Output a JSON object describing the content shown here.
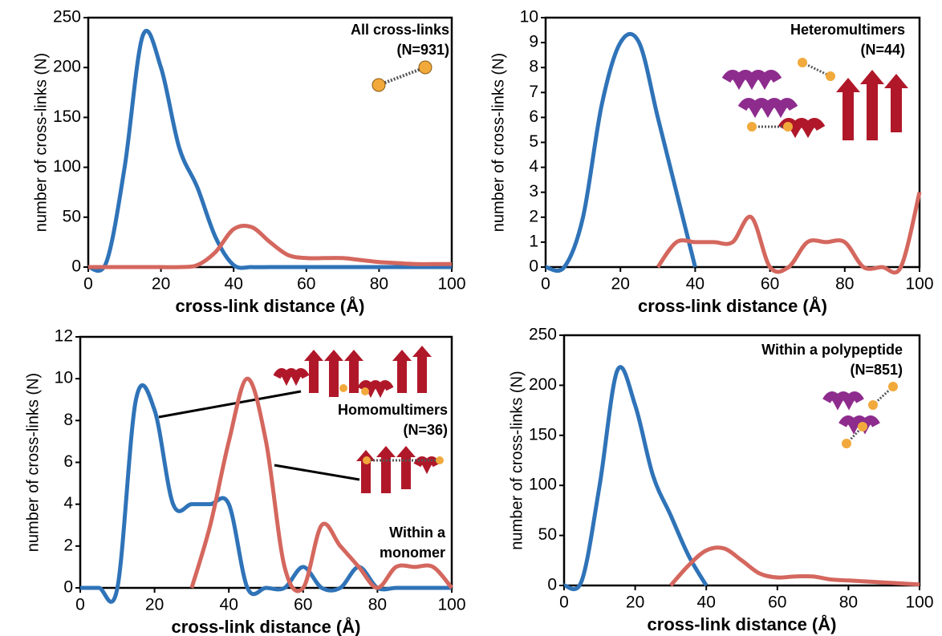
{
  "chart_data": [
    {
      "type": "line",
      "xlabel": "cross-link distance (Å)",
      "ylabel": "number of cross-links (N)",
      "annotations": [
        "All cross-links",
        "(N=931)"
      ],
      "x": [
        0,
        5,
        10,
        15,
        20,
        25,
        30,
        35,
        40,
        45,
        50,
        55,
        60,
        65,
        70,
        75,
        80,
        85,
        90,
        95,
        100
      ],
      "series": [
        {
          "color": "#2f73b8",
          "values": [
            0,
            5,
            100,
            232,
            200,
            120,
            80,
            30,
            2,
            0,
            0,
            0,
            0,
            0,
            0,
            0,
            0,
            0,
            0,
            0,
            0
          ]
        },
        {
          "color": "#d4675e",
          "values": [
            0,
            0,
            0,
            0,
            0,
            0,
            2,
            15,
            38,
            40,
            25,
            12,
            9,
            9,
            9,
            7,
            5,
            4,
            3,
            3,
            3
          ]
        }
      ],
      "xlim": [
        0,
        100
      ],
      "xticks": [
        0,
        20,
        40,
        60,
        80,
        100
      ],
      "ylim": [
        0,
        250
      ],
      "yticks": [
        0,
        50,
        100,
        150,
        200,
        250
      ]
    },
    {
      "type": "line",
      "xlabel": "cross-link distance (Å)",
      "ylabel": "number of cross-links (N)",
      "annotations": [
        "Heteromultimers",
        "(N=44)"
      ],
      "x": [
        0,
        5,
        10,
        15,
        20,
        25,
        30,
        35,
        40,
        45,
        50,
        55,
        60,
        65,
        70,
        75,
        80,
        85,
        90,
        95,
        100
      ],
      "series": [
        {
          "color": "#2f73b8",
          "values": [
            0,
            0,
            2,
            6.5,
            9,
            9,
            6,
            3,
            0,
            null,
            null,
            null,
            null,
            null,
            null,
            null,
            null,
            null,
            null,
            null,
            null
          ]
        },
        {
          "color": "#d4675e",
          "values": [
            null,
            null,
            null,
            null,
            null,
            null,
            0,
            1,
            1,
            1,
            1,
            2,
            0,
            0,
            1,
            1,
            1,
            0,
            0,
            0,
            3
          ]
        }
      ],
      "xlim": [
        0,
        100
      ],
      "xticks": [
        0,
        20,
        40,
        60,
        80,
        100
      ],
      "ylim": [
        0,
        10
      ],
      "yticks": [
        0,
        1,
        2,
        3,
        4,
        5,
        6,
        7,
        8,
        9,
        10
      ]
    },
    {
      "type": "line",
      "xlabel": "cross-link distance (Å)",
      "ylabel": "number of cross-links (N)",
      "annotations": [
        "Homomultimers",
        "(N=36)",
        "Within a",
        "monomer"
      ],
      "x": [
        0,
        5,
        10,
        15,
        20,
        25,
        30,
        35,
        40,
        45,
        50,
        55,
        60,
        65,
        70,
        75,
        80,
        85,
        90,
        95,
        100
      ],
      "series": [
        {
          "color": "#2f73b8",
          "values": [
            0,
            0,
            0,
            9,
            8.5,
            4,
            4,
            4,
            4,
            0,
            0,
            0,
            1,
            0,
            0,
            1,
            0,
            0,
            0,
            0,
            0
          ]
        },
        {
          "color": "#d4675e",
          "values": [
            null,
            null,
            null,
            null,
            null,
            null,
            0,
            3,
            7,
            10,
            7,
            1,
            0,
            3,
            2,
            1,
            0,
            1,
            1,
            1,
            0
          ]
        }
      ],
      "xlim": [
        0,
        100
      ],
      "xticks": [
        0,
        20,
        40,
        60,
        80,
        100
      ],
      "ylim": [
        0,
        12
      ],
      "yticks": [
        0,
        2,
        4,
        6,
        8,
        10,
        12
      ]
    },
    {
      "type": "line",
      "xlabel": "cross-link distance (Å)",
      "ylabel": "number of cross-links (N)",
      "annotations": [
        "Within a polypeptide",
        "(N=851)"
      ],
      "x": [
        0,
        5,
        10,
        15,
        20,
        25,
        30,
        35,
        40,
        45,
        50,
        55,
        60,
        65,
        70,
        75,
        80,
        85,
        90,
        95,
        100
      ],
      "series": [
        {
          "color": "#2f73b8",
          "values": [
            0,
            5,
            100,
            215,
            180,
            110,
            70,
            30,
            0,
            null,
            null,
            null,
            null,
            null,
            null,
            null,
            null,
            null,
            null,
            null,
            null
          ]
        },
        {
          "color": "#d4675e",
          "values": [
            null,
            null,
            null,
            null,
            null,
            null,
            0,
            20,
            35,
            37,
            25,
            12,
            8,
            9,
            9,
            6,
            5,
            4,
            3,
            2,
            1
          ]
        }
      ],
      "xlim": [
        0,
        100
      ],
      "xticks": [
        0,
        20,
        40,
        60,
        80,
        100
      ],
      "ylim": [
        0,
        250
      ],
      "yticks": [
        0,
        50,
        100,
        150,
        200,
        250
      ]
    }
  ]
}
